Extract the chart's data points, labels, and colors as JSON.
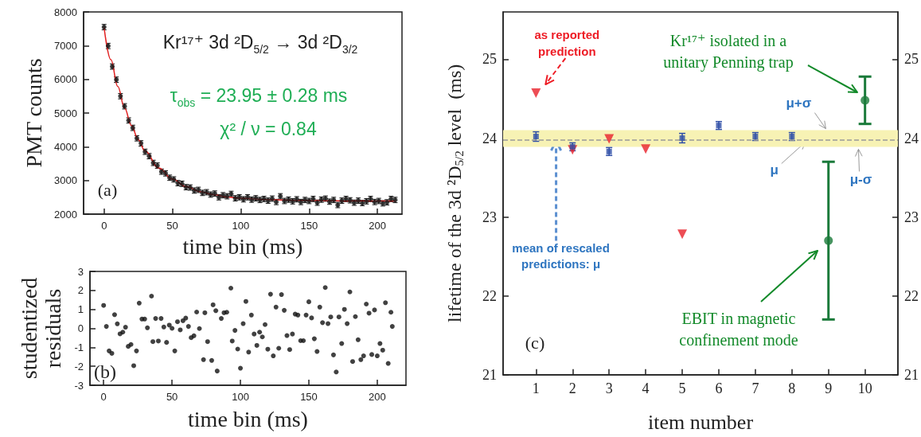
{
  "chart_data": [
    {
      "type": "scatter",
      "xlabel": "time bin (ms)",
      "ylabel": "PMT counts",
      "xlim": [
        -15,
        218
      ],
      "xticks": [
        0,
        50,
        100,
        150,
        200
      ],
      "ylim": [
        2000,
        8000
      ],
      "yticks": [
        2000,
        3000,
        4000,
        5000,
        6000,
        7000,
        8000
      ],
      "marker": "circle",
      "annotations": [
        "Kr¹⁷⁺ 3d ²D$_{5/2}$ → 3d ²D$_{3/2}$",
        "τ$_{obs}$ = 23.95 ± 0.28 ms",
        "χ² / ν = 0.84",
        "(a)"
      ],
      "series": [
        {
          "color": "#111111",
          "x": [
            0,
            3,
            6,
            9,
            12,
            15,
            18,
            21,
            24,
            27,
            30,
            33,
            36,
            39,
            42,
            45,
            48,
            51,
            54,
            57,
            60,
            63,
            66,
            69,
            72,
            75,
            78,
            81,
            84,
            87,
            90,
            93,
            96,
            99,
            102,
            105,
            108,
            111,
            114,
            117,
            120,
            123,
            126,
            129,
            132,
            135,
            138,
            141,
            144,
            147,
            150,
            153,
            156,
            159,
            162,
            165,
            168,
            171,
            174,
            177,
            180,
            183,
            186,
            189,
            192,
            195,
            198,
            201,
            204,
            207,
            210,
            213
          ],
          "values": [
            7550,
            6990,
            6380,
            5990,
            5500,
            5200,
            4780,
            4560,
            4250,
            4100,
            3850,
            3720,
            3520,
            3440,
            3260,
            3210,
            3080,
            3030,
            2920,
            2900,
            2800,
            2790,
            2700,
            2720,
            2630,
            2650,
            2580,
            2610,
            2500,
            2560,
            2530,
            2600,
            2470,
            2500,
            2440,
            2500,
            2430,
            2470,
            2420,
            2450,
            2400,
            2460,
            2360,
            2530,
            2390,
            2430,
            2380,
            2440,
            2360,
            2420,
            2390,
            2450,
            2340,
            2430,
            2460,
            2370,
            2420,
            2270,
            2400,
            2450,
            2410,
            2340,
            2400,
            2330,
            2380,
            2450,
            2360,
            2390,
            2320,
            2350,
            2450,
            2420
          ],
          "errors": [
            80,
            80,
            80,
            80,
            80,
            80,
            80,
            80,
            80,
            80,
            80,
            80,
            80,
            80,
            80,
            80,
            80,
            80,
            80,
            80,
            80,
            80,
            80,
            80,
            80,
            80,
            80,
            80,
            80,
            80,
            80,
            80,
            80,
            80,
            80,
            80,
            80,
            80,
            80,
            80,
            80,
            80,
            80,
            80,
            80,
            80,
            80,
            80,
            80,
            80,
            80,
            80,
            80,
            80,
            80,
            80,
            80,
            80,
            80,
            80,
            80,
            80,
            80,
            80,
            80,
            80,
            80,
            80,
            80,
            80,
            80,
            80
          ]
        },
        {
          "type": "line",
          "marker": "none",
          "color": "#e02020",
          "x": [
            0,
            5,
            10,
            15,
            20,
            25,
            30,
            40,
            50,
            60,
            70,
            80,
            90,
            100,
            120,
            140,
            160,
            180,
            200,
            213
          ],
          "values": [
            7540,
            6580,
            5790,
            5150,
            4630,
            4210,
            3870,
            3370,
            3040,
            2820,
            2670,
            2580,
            2510,
            2470,
            2430,
            2410,
            2400,
            2390,
            2390,
            2390
          ]
        }
      ]
    },
    {
      "type": "scatter",
      "xlabel": "time bin (ms)",
      "ylabel": "studentized\nresiduals",
      "xlim": [
        -10,
        221
      ],
      "xticks": [
        0,
        50,
        100,
        150,
        200
      ],
      "ylim": [
        -3,
        3
      ],
      "yticks": [
        -3,
        -2,
        -1,
        0,
        1,
        2,
        3
      ],
      "marker": "circle",
      "annotations": [
        "(b)"
      ],
      "series": [
        {
          "color": "#111111",
          "x": [
            0,
            2,
            4,
            6,
            8,
            10,
            12,
            14,
            16,
            18,
            20,
            22,
            24,
            26,
            28,
            30,
            32,
            35,
            36,
            38,
            40,
            42,
            44,
            46,
            48,
            50,
            52,
            54,
            56,
            58,
            60,
            62,
            64,
            66,
            68,
            70,
            73,
            74,
            76,
            79,
            80,
            82,
            83,
            86,
            88,
            90,
            93,
            94,
            96,
            98,
            100,
            102,
            104,
            106,
            108,
            110,
            112,
            114,
            116,
            118,
            120,
            122,
            124,
            126,
            128,
            130,
            132,
            134,
            136,
            138,
            140,
            142,
            144,
            146,
            148,
            150,
            152,
            154,
            156,
            158,
            160,
            162,
            164,
            166,
            168,
            170,
            172,
            174,
            176,
            178,
            180,
            182,
            184,
            186,
            188,
            190,
            192,
            194,
            196,
            198,
            200,
            202,
            204,
            206,
            208,
            210,
            211
          ],
          "values": [
            1.21,
            0.1,
            -1.19,
            -1.32,
            0.72,
            0.24,
            -0.29,
            -0.2,
            0.06,
            -0.95,
            -0.85,
            -1.97,
            -1.19,
            1.33,
            0.49,
            0.49,
            0.03,
            1.7,
            -0.7,
            0.52,
            -0.67,
            0.52,
            0.07,
            -0.74,
            0.17,
            0,
            -1.19,
            0.35,
            -0.08,
            0.4,
            0.54,
            0.1,
            -0.49,
            -0.39,
            0.86,
            -0.01,
            -1.65,
            0.82,
            -0.7,
            -1.69,
            1.24,
            0.93,
            -2.25,
            0.52,
            0.82,
            0.85,
            2.12,
            -0.67,
            -0.11,
            -1.09,
            -2.1,
            0.25,
            1.42,
            -1.25,
            0.7,
            -0.3,
            -0.9,
            -0.2,
            -0.45,
            0.2,
            -1.1,
            1.8,
            -1.45,
            1.12,
            -1.05,
            1.78,
            0.95,
            -0.38,
            -1.12,
            -0.3,
            0.75,
            0.7,
            -0.65,
            -0.65,
            0.7,
            1.4,
            0.55,
            -0.55,
            -1.22,
            1.12,
            0.3,
            2.15,
            0.25,
            0.6,
            -1.4,
            -2.3,
            0.6,
            -0.8,
            1.0,
            0.25,
            1.92,
            -1.75,
            0.62,
            -0.6,
            -1.65,
            -1.45,
            1.28,
            0.8,
            -1.38,
            0.97,
            -1.45,
            -0.8,
            -1.15,
            1.35,
            -1.85,
            0.85,
            0.1
          ]
        }
      ]
    },
    {
      "type": "scatter",
      "xlabel": "item number",
      "ylabel": "lifetime of the 3d ²D$_{5/2}$ level  (ms)",
      "xlim": [
        0.1,
        10.9
      ],
      "xticks": [
        1,
        2,
        3,
        4,
        5,
        6,
        7,
        8,
        9,
        10
      ],
      "ylim": [
        21,
        25.6
      ],
      "yticks": [
        21,
        22,
        23,
        24,
        25
      ],
      "y2lim": [
        21,
        25.6
      ],
      "y2ticks": [
        21,
        22,
        23,
        24,
        25
      ],
      "ref_lines": [
        {
          "axis": "y",
          "value": 23.98,
          "color": "#999999",
          "line_style": "dashed"
        }
      ],
      "bands": [
        {
          "axis": "y",
          "from": 23.89,
          "to": 24.1,
          "color": "#f7f2b4"
        }
      ],
      "annotations": [
        {
          "text": "as reported\nprediction",
          "x": 1,
          "y": 24.57
        },
        {
          "text": "mean of rescaled\npredictions: μ",
          "x": 1.55,
          "y": 23.98
        },
        "Kr¹⁷⁺ isolated in a\nunitary Penning trap",
        "EBIT in magnetic\nconfinement mode",
        {
          "text": "μ+σ",
          "x": 9.45,
          "y": 24.1
        },
        {
          "text": "μ",
          "x": 8.5,
          "y": 23.98
        },
        {
          "text": "μ-σ",
          "x": 9.8,
          "y": 23.89
        },
        "(c)"
      ],
      "series": [
        {
          "marker": "square",
          "color": "#2f4fa8",
          "x": [
            1,
            2,
            3,
            5,
            6,
            7,
            8
          ],
          "values": [
            24.02,
            23.89,
            23.83,
            24.0,
            24.16,
            24.02,
            24.02
          ],
          "errors": [
            0.06,
            0.05,
            0.05,
            0.06,
            0.05,
            0.05,
            0.05
          ]
        },
        {
          "marker": "triangle",
          "color": "#e8202a",
          "x": [
            1,
            2,
            3,
            4,
            5
          ],
          "values": [
            24.57,
            23.85,
            23.99,
            23.86,
            22.78
          ]
        },
        {
          "marker": "circle",
          "color": "#1a7a3a",
          "x": [
            9,
            10
          ],
          "values": [
            22.7,
            24.48
          ],
          "errors": [
            1.0,
            0.3
          ]
        }
      ]
    }
  ]
}
